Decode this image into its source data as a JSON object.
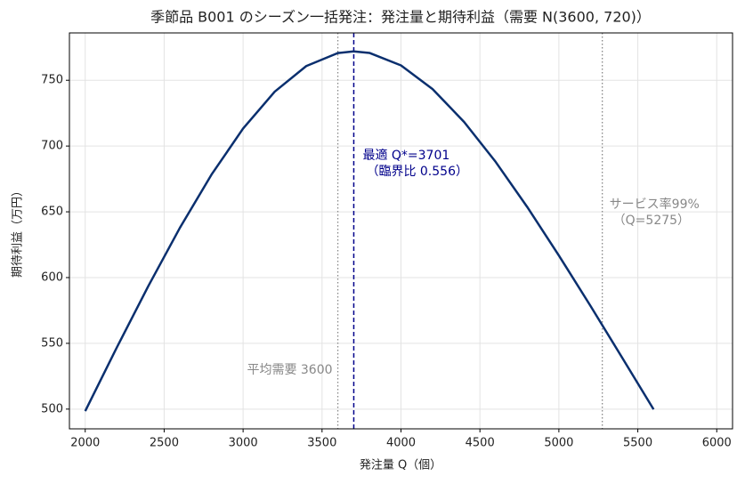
{
  "chart_data": {
    "type": "line",
    "title": "季節品 B001 のシーズン一括発注：発注量と期待利益（需要 N(3600, 720)）",
    "xlabel": "発注量 Q（個）",
    "ylabel": "期待利益（万円）",
    "x": [
      2000,
      2200,
      2400,
      2600,
      2800,
      3000,
      3200,
      3400,
      3600,
      3700,
      3800,
      4000,
      4200,
      4400,
      4600,
      4800,
      5000,
      5200,
      5400,
      5600
    ],
    "series": [
      {
        "name": "期待利益",
        "color": "#0a2f6e",
        "values": [
          498.5,
          546.8,
          593.6,
          637.9,
          678.3,
          713.3,
          741.3,
          760.8,
          770.7,
          772.0,
          770.8,
          761.3,
          743.3,
          718.3,
          687.9,
          653.6,
          616.8,
          578.5,
          539.3,
          499.8
        ]
      }
    ],
    "xlim": [
      1900,
      6100
    ],
    "ylim": [
      485,
      786
    ],
    "xticks": [
      2000,
      2500,
      3000,
      3500,
      4000,
      4500,
      5000,
      5500,
      6000
    ],
    "yticks": [
      500,
      550,
      600,
      650,
      700,
      750
    ],
    "grid": true,
    "vlines": [
      {
        "x": 3600,
        "color": "#888888",
        "style": "dotted",
        "label": [
          "平均需要 3600"
        ]
      },
      {
        "x": 3701,
        "color": "#00008b",
        "style": "dashed",
        "label": [
          "最適 Q*=3701",
          "（臨界比 0.556）"
        ]
      },
      {
        "x": 5275,
        "color": "#888888",
        "style": "dotted",
        "label": [
          "サービス率99%",
          "（Q=5275）"
        ]
      }
    ]
  }
}
